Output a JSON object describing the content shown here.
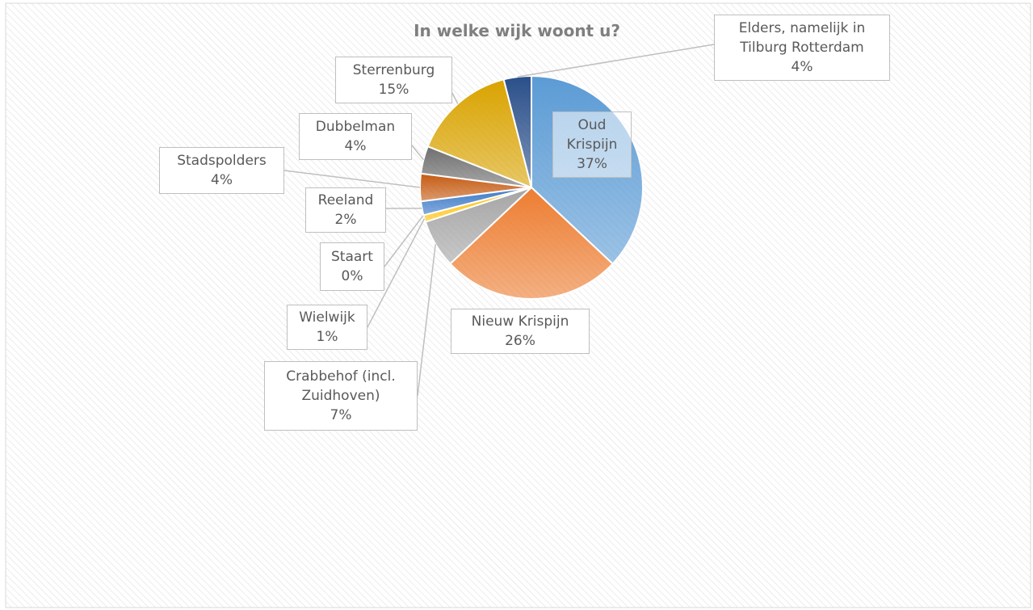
{
  "chart_data": {
    "type": "pie",
    "title": "In welke wijk woont u?",
    "categories": [
      "Oud Krispijn",
      "Nieuw Krispijn",
      "Crabbehof (incl. Zuidhoven)",
      "Wielwijk",
      "Staart",
      "Reeland",
      "Stadspolders",
      "Dubbelman",
      "Sterrenburg",
      "Elders, namelijk in Tilburg Rotterdam"
    ],
    "values": [
      37,
      26,
      7,
      1,
      0,
      2,
      4,
      4,
      15,
      4
    ],
    "value_labels": [
      "37%",
      "26%",
      "7%",
      "1%",
      "0%",
      "2%",
      "4%",
      "4%",
      "15%",
      "4%"
    ],
    "colors": [
      "#5b9bd5",
      "#ed7d31",
      "#a5a5a5",
      "#ffc000",
      "#4472c4",
      "#3a78c8",
      "#c55a11",
      "#6f6f6f",
      "#d9a300",
      "#2a4f8a"
    ]
  }
}
